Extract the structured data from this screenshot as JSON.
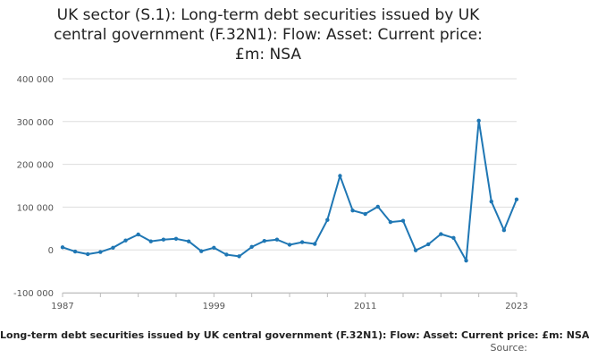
{
  "chart_data": {
    "type": "line",
    "title": "UK sector (S.1): Long-term debt securities issued by UK central government (F.32N1): Flow: Asset: Current price: £m: NSA",
    "title_lines": [
      "UK sector (S.1): Long-term debt securities issued by UK",
      "central government (F.32N1): Flow: Asset: Current price:",
      "£m: NSA"
    ],
    "xlabel": "",
    "ylabel": "",
    "x_ticks": [
      "1987",
      "1999",
      "2011",
      "2023"
    ],
    "y_ticks": [
      {
        "value": 400000,
        "label": "400 000"
      },
      {
        "value": 300000,
        "label": "300 000"
      },
      {
        "value": 200000,
        "label": "200 000"
      },
      {
        "value": 100000,
        "label": "100 000"
      },
      {
        "value": 0,
        "label": "0"
      },
      {
        "value": -100000,
        "label": "-100 000"
      }
    ],
    "ylim": [
      -100000,
      400000
    ],
    "xlim": [
      1987,
      2023
    ],
    "grid": "horizontal",
    "series": [
      {
        "name": "Long-term debt securities issued by UK central government (F.32N1): Flow: Asset: Current price: £m: NSA",
        "color": "#1f77b4",
        "x": [
          1987,
          1988,
          1989,
          1990,
          1991,
          1992,
          1993,
          1994,
          1995,
          1996,
          1997,
          1998,
          1999,
          2000,
          2001,
          2002,
          2003,
          2004,
          2005,
          2006,
          2007,
          2008,
          2009,
          2010,
          2011,
          2012,
          2013,
          2014,
          2015,
          2016,
          2017,
          2018,
          2019,
          2020,
          2021,
          2022,
          2023
        ],
        "values": [
          6000,
          -4000,
          -10000,
          -5000,
          5000,
          22000,
          36000,
          20000,
          24000,
          26000,
          20000,
          -3000,
          5000,
          -11000,
          -15000,
          7000,
          21000,
          24000,
          12000,
          18000,
          14000,
          70000,
          173000,
          92000,
          84000,
          101000,
          65000,
          68000,
          -1000,
          13000,
          37000,
          28000,
          -25000,
          302000,
          113000,
          46000,
          118000
        ]
      }
    ]
  },
  "legend": {
    "text": "Long-term debt securities issued by UK central government (F.32N1): Flow: Asset: Current price: £m: NSA"
  },
  "source": {
    "label": "Source:"
  }
}
